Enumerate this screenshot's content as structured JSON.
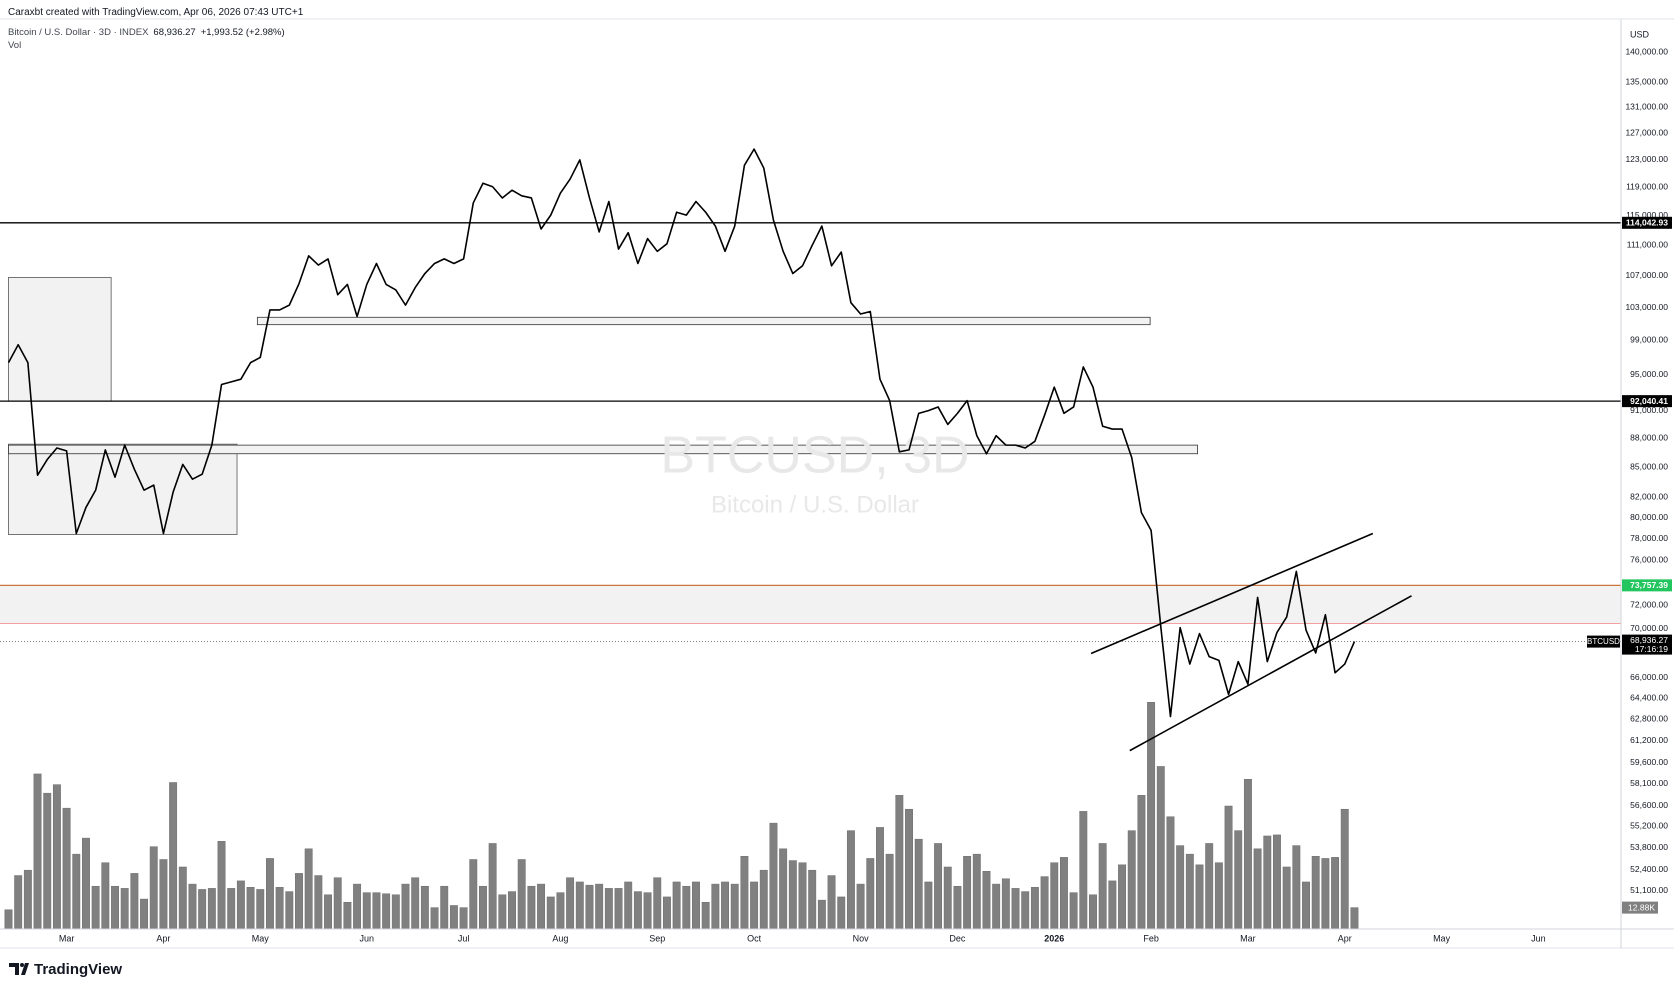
{
  "header": {
    "byline": "Caraxbt created with TradingView.com, Apr 06, 2026 07:43 UTC+1",
    "brand": "TradingView"
  },
  "chart_data": {
    "type": "line",
    "legend": {
      "symbol": "Bitcoin / U.S. Dollar · 3D · INDEX",
      "change": "+1,993.52 (+2.98%)"
    },
    "watermark": {
      "title": "BTCUSD, 3D",
      "subtitle": "Bitcoin / U.S. Dollar"
    },
    "currency": "USD",
    "log_scale": true,
    "grid": false,
    "categories": [
      null,
      null,
      null,
      null,
      null,
      null,
      "Mar",
      null,
      null,
      null,
      null,
      null,
      null,
      null,
      null,
      null,
      "Apr",
      null,
      null,
      null,
      null,
      null,
      null,
      null,
      null,
      null,
      "May",
      null,
      null,
      null,
      null,
      null,
      null,
      null,
      null,
      null,
      null,
      "Jun",
      null,
      null,
      null,
      null,
      null,
      null,
      null,
      null,
      null,
      "Jul",
      null,
      null,
      null,
      null,
      null,
      null,
      null,
      null,
      null,
      "Aug",
      null,
      null,
      null,
      null,
      null,
      null,
      null,
      null,
      null,
      "Sep",
      null,
      null,
      null,
      null,
      null,
      null,
      null,
      null,
      null,
      "Oct",
      null,
      null,
      null,
      null,
      null,
      null,
      null,
      null,
      null,
      null,
      "Nov",
      null,
      null,
      null,
      null,
      null,
      null,
      null,
      null,
      null,
      "Dec",
      null,
      null,
      null,
      null,
      null,
      null,
      null,
      null,
      null,
      "2026",
      null,
      null,
      null,
      null,
      null,
      null,
      null,
      null,
      null,
      "Feb",
      null,
      null,
      null,
      null,
      null,
      null,
      null,
      null,
      null,
      "Mar",
      null,
      null,
      null,
      null,
      null,
      null,
      null,
      null,
      null,
      "Apr",
      null,
      null,
      null,
      null,
      null,
      null,
      null,
      null,
      null,
      "May",
      null,
      null,
      null,
      null,
      null,
      null,
      null,
      null,
      null,
      "Jun",
      null,
      null,
      null,
      null,
      null,
      null,
      null,
      null
    ],
    "series": [
      {
        "name": "BTCUSD",
        "color": "#000000",
        "values": [
          96400,
          98500,
          96400,
          84200,
          85800,
          87000,
          86700,
          78500,
          81000,
          82700,
          86800,
          84000,
          87300,
          84800,
          82700,
          83200,
          78500,
          82500,
          85300,
          83800,
          84300,
          87300,
          93900,
          94200,
          94500,
          96400,
          97000,
          102700,
          102700,
          103300,
          106000,
          109600,
          108400,
          109200,
          104600,
          105900,
          101900,
          105900,
          108600,
          105900,
          105200,
          103300,
          105500,
          107300,
          108600,
          109200,
          108600,
          109200,
          116800,
          119600,
          119100,
          117500,
          118600,
          117800,
          117500,
          113200,
          115100,
          118200,
          120200,
          123000,
          117500,
          112800,
          117000,
          110500,
          112700,
          108600,
          111900,
          110200,
          111200,
          115500,
          115100,
          117000,
          115500,
          113600,
          110200,
          113600,
          122200,
          124600,
          121800,
          114400,
          110200,
          107300,
          108300,
          111000,
          113600,
          108300,
          110100,
          103600,
          102200,
          102500,
          94500,
          92100,
          86600,
          86800,
          90700,
          91000,
          91400,
          89500,
          90700,
          92100,
          88300,
          86400,
          88300,
          87300,
          87300,
          87000,
          87700,
          90500,
          93600,
          90700,
          91400,
          95900,
          93600,
          89300,
          89000,
          89000,
          86000,
          80500,
          78800,
          70200,
          63000,
          70100,
          67100,
          69600,
          67700,
          67400,
          64700,
          67300,
          65500,
          72700,
          67300,
          69700,
          71000,
          75000,
          69900,
          68000,
          71200,
          66400,
          67100,
          68936.27,
          null,
          null,
          null,
          null,
          null,
          null,
          null,
          null,
          null,
          null,
          null,
          null,
          null,
          null,
          null,
          null,
          null,
          null,
          null,
          null,
          null,
          null,
          null,
          null,
          null,
          null,
          null
        ]
      },
      {
        "name": "Vol",
        "color": "#808080",
        "axis": "volume",
        "last_label": "12.88K",
        "values": [
          11590,
          32200,
          35420,
          93380,
          81790,
          86940,
          72770,
          45080,
          54740,
          25760,
          39930,
          25760,
          24470,
          33490,
          18030,
          49590,
          41860,
          88230,
          37350,
          27050,
          23830,
          24470,
          52810,
          24470,
          28980,
          25120,
          23830,
          42500,
          25120,
          22540,
          33490,
          48300,
          32200,
          20610,
          30910,
          16100,
          27050,
          21900,
          21900,
          21250,
          20610,
          27050,
          30910,
          25760,
          12880,
          25760,
          14170,
          12880,
          41860,
          25760,
          51520,
          20610,
          22540,
          41860,
          25760,
          27050,
          19320,
          21900,
          30910,
          28340,
          26400,
          27050,
          24470,
          24470,
          28340,
          22540,
          21900,
          30910,
          19320,
          28340,
          25760,
          28340,
          16100,
          27050,
          28340,
          27050,
          43790,
          28340,
          35420,
          63760,
          48300,
          41220,
          39930,
          35420,
          17390,
          32200,
          19320,
          59250,
          27050,
          42500,
          61180,
          45080,
          80500,
          72130,
          54100,
          28340,
          51520,
          37350,
          25760,
          43790,
          45080,
          34780,
          27050,
          30270,
          24470,
          22540,
          25120,
          31560,
          39930,
          43150,
          21900,
          70840,
          20610,
          51520,
          28980,
          38640,
          59250,
          80500,
          136530,
          97890,
          67620,
          50230,
          45080,
          38640,
          51520,
          39930,
          74060,
          59250,
          90160,
          48300,
          56030,
          56670,
          37350,
          50230,
          28340,
          43790,
          42500,
          43150,
          72130,
          12880,
          null,
          null,
          null,
          null,
          null,
          null,
          null,
          null,
          null,
          null,
          null,
          null,
          null,
          null,
          null,
          null,
          null,
          null,
          null,
          null,
          null,
          null,
          null,
          null,
          null,
          null,
          null
        ]
      }
    ],
    "ylim": [
      48800,
      145700
    ],
    "volume_lim": [
      0,
      548000
    ],
    "yticks": [
      {
        "value": 140000,
        "label": "140,000.00"
      },
      {
        "value": 135000,
        "label": "135,000.00"
      },
      {
        "value": 131000,
        "label": "131,000.00"
      },
      {
        "value": 127000,
        "label": "127,000.00"
      },
      {
        "value": 123000,
        "label": "123,000.00"
      },
      {
        "value": 119000,
        "label": "119,000.00"
      },
      {
        "value": 115000,
        "label": "115,000.00"
      },
      {
        "value": 111000,
        "label": "111,000.00"
      },
      {
        "value": 107000,
        "label": "107,000.00"
      },
      {
        "value": 103000,
        "label": "103,000.00"
      },
      {
        "value": 99000,
        "label": "99,000.00"
      },
      {
        "value": 95000,
        "label": "95,000.00"
      },
      {
        "value": 91000,
        "label": "91,000.00"
      },
      {
        "value": 88000,
        "label": "88,000.00"
      },
      {
        "value": 85000,
        "label": "85,000.00"
      },
      {
        "value": 82000,
        "label": "82,000.00"
      },
      {
        "value": 80000,
        "label": "80,000.00"
      },
      {
        "value": 78000,
        "label": "78,000.00"
      },
      {
        "value": 76000,
        "label": "76,000.00"
      },
      {
        "value": 72000,
        "label": "72,000.00"
      },
      {
        "value": 70000,
        "label": "70,000.00"
      },
      {
        "value": 66000,
        "label": "66,000.00"
      },
      {
        "value": 64400,
        "label": "64,400.00"
      },
      {
        "value": 62800,
        "label": "62,800.00"
      },
      {
        "value": 61200,
        "label": "61,200.00"
      },
      {
        "value": 59600,
        "label": "59,600.00"
      },
      {
        "value": 58100,
        "label": "58,100.00"
      },
      {
        "value": 56600,
        "label": "56,600.00"
      },
      {
        "value": 55200,
        "label": "55,200.00"
      },
      {
        "value": 53800,
        "label": "53,800.00"
      },
      {
        "value": 52400,
        "label": "52,400.00"
      },
      {
        "value": 51100,
        "label": "51,100.00"
      }
    ],
    "levels": [
      {
        "value": 114042.93,
        "label": "114,042.93",
        "color": "#000000",
        "tag_color": "#000000"
      },
      {
        "value": 92040.41,
        "label": "92,040.41",
        "color": "#000000",
        "tag_color": "#000000"
      },
      {
        "value": 73757.39,
        "label": "73,757.39",
        "color": "#c8763d",
        "tag_color": "#22c55e"
      }
    ],
    "zone": {
      "low": 70450,
      "high": 73757.39,
      "fill": "#f2f2f2",
      "edge_color": "#f4a0a0"
    },
    "price_line": {
      "value": 68936.27,
      "label": "68,936.27",
      "countdown": "17:16:19",
      "color": "#555555"
    },
    "drawings": [
      {
        "kind": "box",
        "x": [
          0,
          10.6
        ],
        "y": [
          92040.41,
          106800
        ],
        "fill": "#f2f2f2",
        "stroke": "#555555"
      },
      {
        "kind": "box",
        "x": [
          0,
          23.6
        ],
        "y": [
          78400,
          87400
        ],
        "fill": "#f2f2f2",
        "stroke": "#555555"
      },
      {
        "kind": "box",
        "x": [
          25.7,
          117.9
        ],
        "y": [
          100900,
          101800
        ],
        "fill": "#f2f2f2",
        "stroke": "#333333"
      },
      {
        "kind": "box",
        "x": [
          0,
          122.8
        ],
        "y": [
          86400,
          87300
        ],
        "fill": "#f2f2f2",
        "stroke": "#333333"
      },
      {
        "kind": "trendline",
        "x": [
          111.8,
          140.9
        ],
        "y": [
          67960,
          78500
        ],
        "stroke": "#000000"
      },
      {
        "kind": "trendline",
        "x": [
          115.8,
          144.9
        ],
        "y": [
          60470,
          72840
        ],
        "stroke": "#000000"
      }
    ]
  }
}
